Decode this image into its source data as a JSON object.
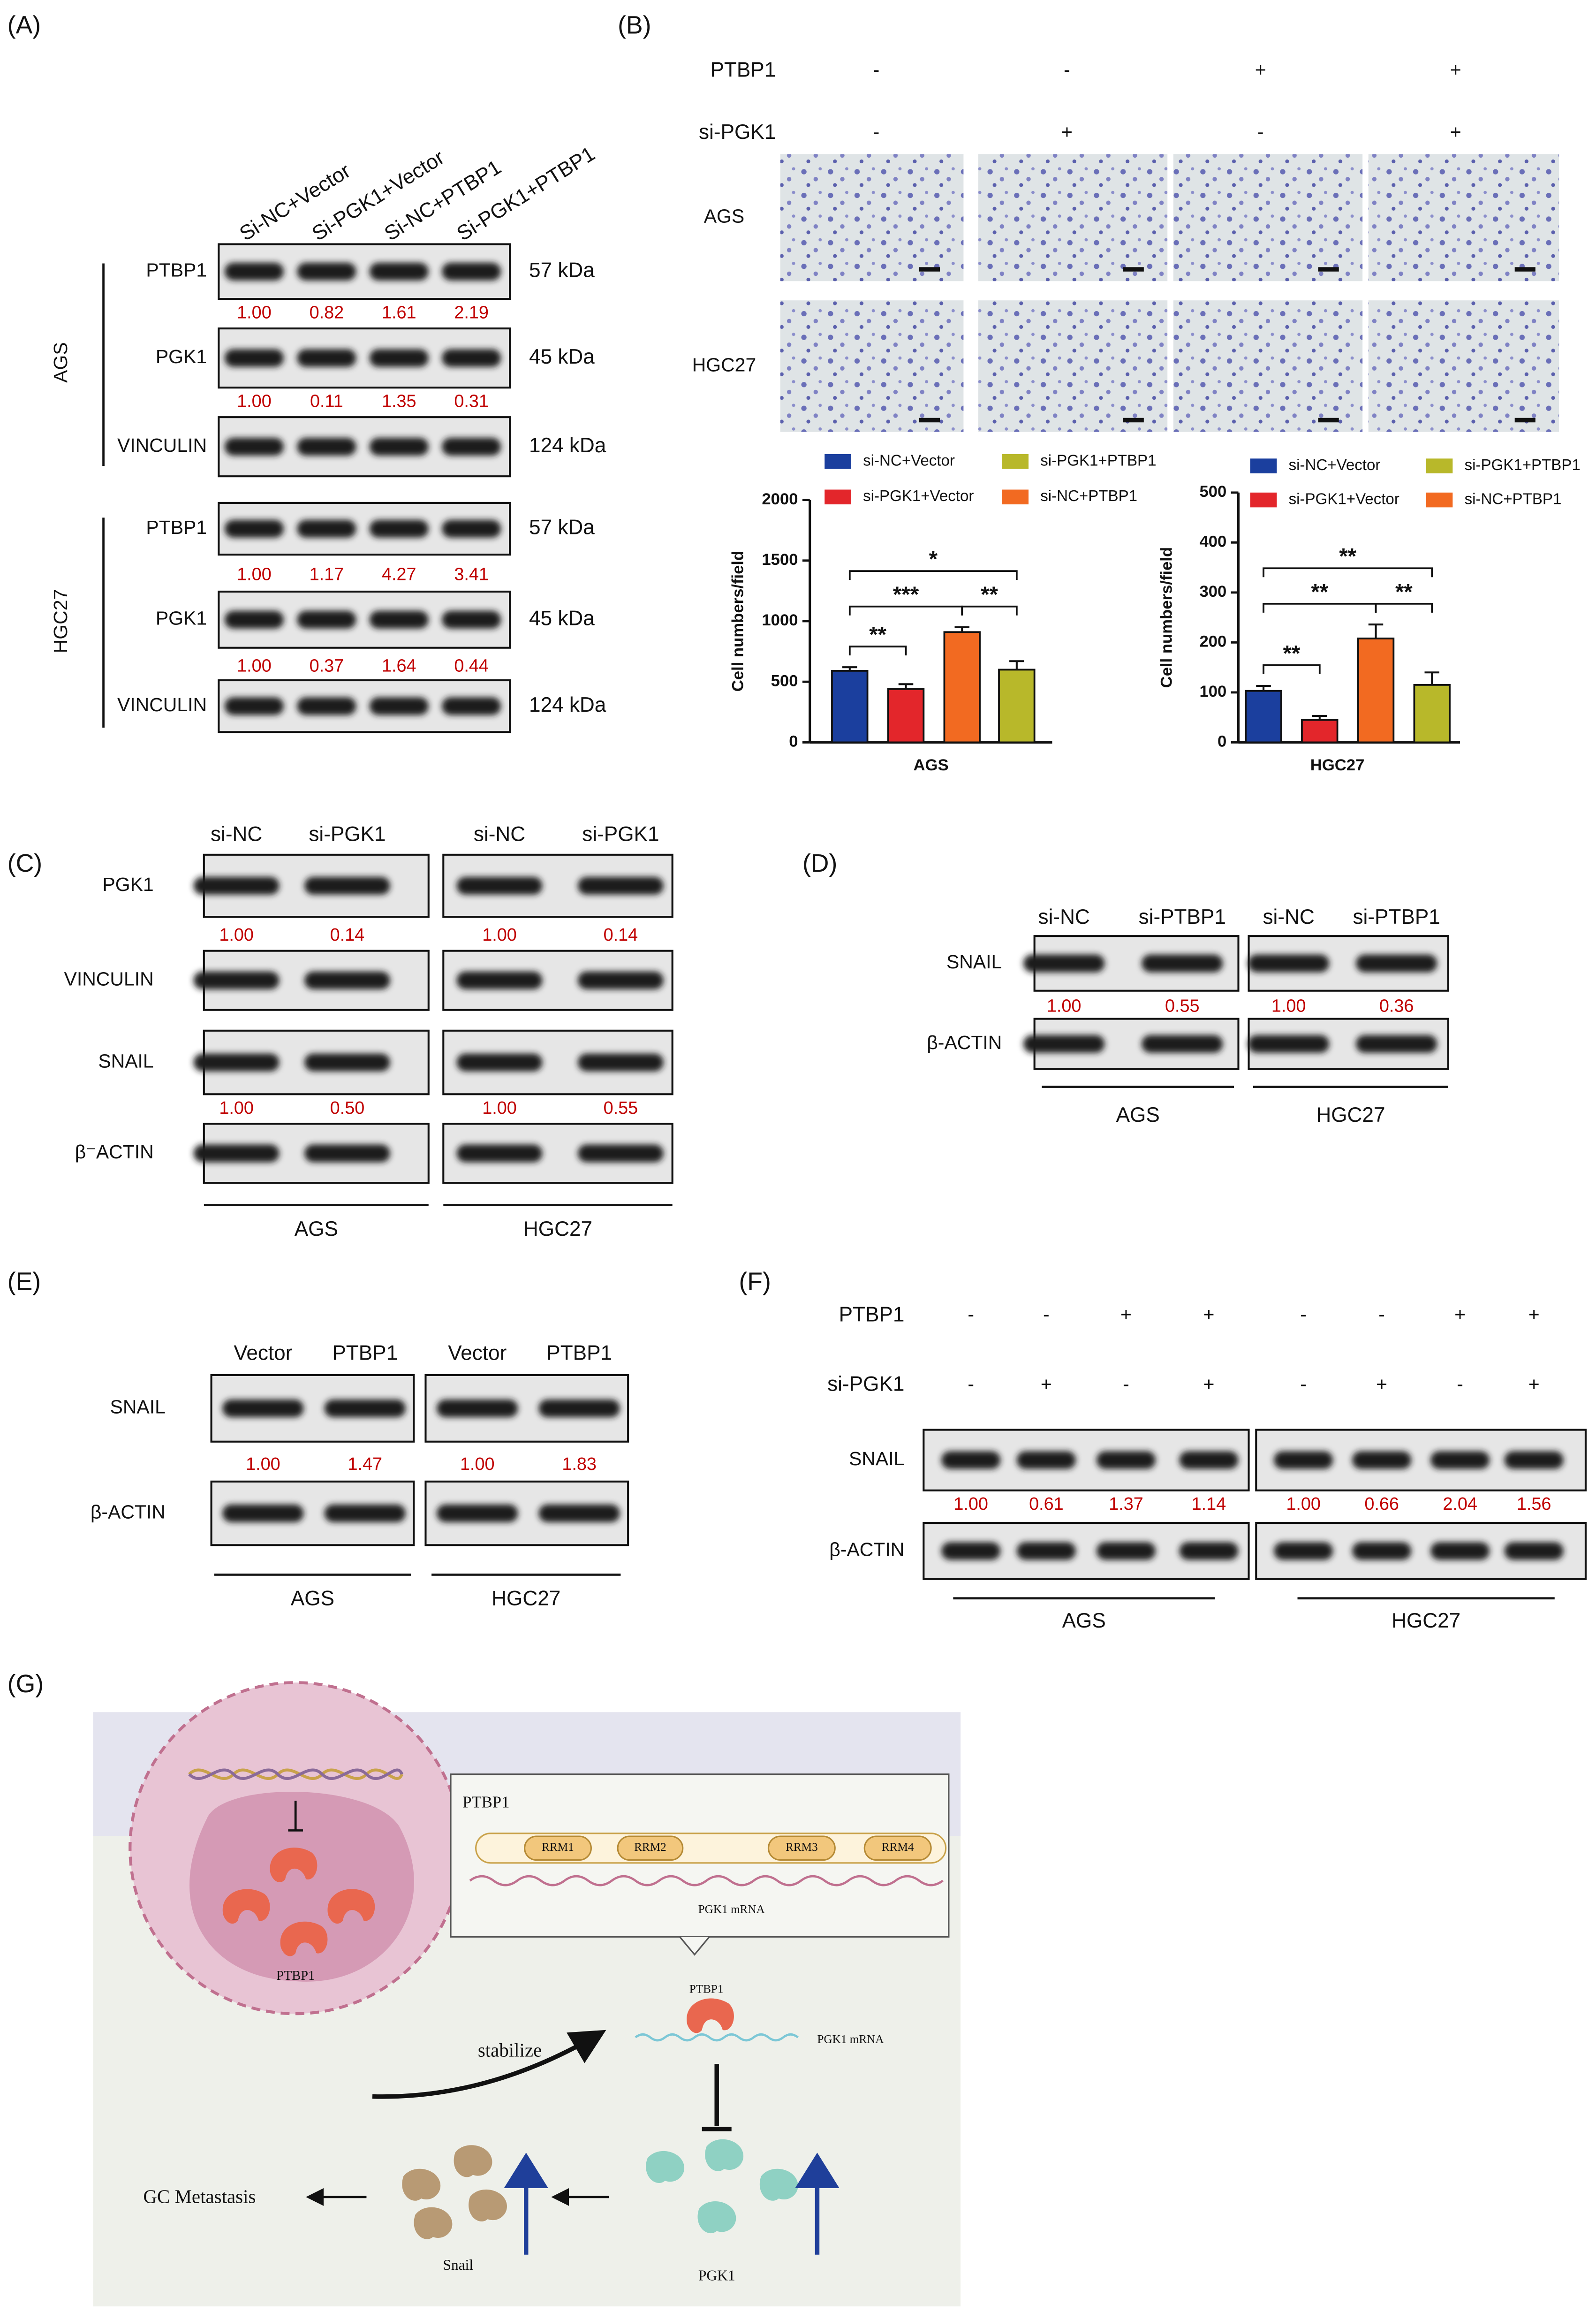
{
  "panel_labels": [
    "(A)",
    "(B)",
    "(C)",
    "(D)",
    "(E)",
    "(F)",
    "(G)"
  ],
  "panel_a": {
    "columns": [
      "Si-NC+Vector",
      "Si-PGK1+Vector",
      "Si-NC+PTBP1",
      "Si-PGK1+PTBP1"
    ],
    "groups": [
      {
        "name": "AGS",
        "rows": [
          {
            "protein": "PTBP1",
            "size": "57 kDa",
            "quant": [
              "1.00",
              "0.82",
              "1.61",
              "2.19"
            ]
          },
          {
            "protein": "PGK1",
            "size": "45 kDa",
            "quant": [
              "1.00",
              "0.11",
              "1.35",
              "0.31"
            ]
          },
          {
            "protein": "VINCULIN",
            "size": "124 kDa"
          }
        ]
      },
      {
        "name": "HGC27",
        "rows": [
          {
            "protein": "PTBP1",
            "size": "57 kDa",
            "quant": [
              "1.00",
              "1.17",
              "4.27",
              "3.41"
            ]
          },
          {
            "protein": "PGK1",
            "size": "45 kDa",
            "quant": [
              "1.00",
              "0.37",
              "1.64",
              "0.44"
            ]
          },
          {
            "protein": "VINCULIN",
            "size": "124 kDa"
          }
        ]
      }
    ]
  },
  "panel_b": {
    "conditions": [
      {
        "name": "PTBP1",
        "signs": [
          "-",
          "-",
          "+",
          "+"
        ]
      },
      {
        "name": "si-PGK1",
        "signs": [
          "-",
          "+",
          "-",
          "+"
        ]
      }
    ],
    "rows": [
      "AGS",
      "HGC27"
    ]
  },
  "chart_data": [
    {
      "type": "bar",
      "categories": [
        "AGS"
      ],
      "ylabel": "Cell numbers/field",
      "ylim": [
        0,
        2000
      ],
      "yticks": [
        0,
        500,
        1000,
        1500,
        2000
      ],
      "series": [
        {
          "name": "si-NC+Vector",
          "color": "#1b3f9e",
          "values": [
            590
          ],
          "errors": [
            30
          ]
        },
        {
          "name": "si-PGK1+Vector",
          "color": "#e3262b",
          "values": [
            440
          ],
          "errors": [
            40
          ]
        },
        {
          "name": "si-NC+PTBP1",
          "color": "#f26a21",
          "values": [
            910
          ],
          "errors": [
            40
          ]
        },
        {
          "name": "si-PGK1+PTBP1",
          "color": "#b8b82a",
          "values": [
            600
          ],
          "errors": [
            70
          ]
        }
      ],
      "annotations": [
        {
          "text": "**",
          "between": [
            "si-NC+Vector",
            "si-PGK1+Vector"
          ]
        },
        {
          "text": "***",
          "between": [
            "si-NC+Vector",
            "si-NC+PTBP1"
          ]
        },
        {
          "text": "**",
          "between": [
            "si-NC+PTBP1",
            "si-PGK1+PTBP1"
          ]
        },
        {
          "text": "*",
          "between": [
            "si-NC+Vector",
            "si-PGK1+PTBP1"
          ]
        }
      ]
    },
    {
      "type": "bar",
      "categories": [
        "HGC27"
      ],
      "ylabel": "Cell numbers/field",
      "ylim": [
        0,
        500
      ],
      "yticks": [
        0,
        100,
        200,
        300,
        400,
        500
      ],
      "series": [
        {
          "name": "si-NC+Vector",
          "color": "#1b3f9e",
          "values": [
            103
          ],
          "errors": [
            10
          ]
        },
        {
          "name": "si-PGK1+Vector",
          "color": "#e3262b",
          "values": [
            45
          ],
          "errors": [
            8
          ]
        },
        {
          "name": "si-NC+PTBP1",
          "color": "#f26a21",
          "values": [
            208
          ],
          "errors": [
            28
          ]
        },
        {
          "name": "si-PGK1+PTBP1",
          "color": "#b8b82a",
          "values": [
            115
          ],
          "errors": [
            25
          ]
        }
      ],
      "annotations": [
        {
          "text": "**",
          "between": [
            "si-NC+Vector",
            "si-PGK1+Vector"
          ]
        },
        {
          "text": "**",
          "between": [
            "si-NC+Vector",
            "si-NC+PTBP1"
          ]
        },
        {
          "text": "**",
          "between": [
            "si-NC+PTBP1",
            "si-PGK1+PTBP1"
          ]
        },
        {
          "text": "**",
          "between": [
            "si-NC+Vector",
            "si-PGK1+PTBP1"
          ]
        }
      ]
    }
  ],
  "panel_c": {
    "columns": [
      "si-NC",
      "si-PGK1",
      "si-NC",
      "si-PGK1"
    ],
    "rows": [
      {
        "protein": "PGK1",
        "quant": [
          "1.00",
          "0.14",
          "1.00",
          "0.14"
        ]
      },
      {
        "protein": "VINCULIN"
      },
      {
        "protein": "SNAIL",
        "quant": [
          "1.00",
          "0.50",
          "1.00",
          "0.55"
        ]
      },
      {
        "protein": "β⁻ACTIN"
      }
    ],
    "groups": [
      "AGS",
      "HGC27"
    ]
  },
  "panel_d": {
    "columns": [
      "si-NC",
      "si-PTBP1",
      "si-NC",
      "si-PTBP1"
    ],
    "rows": [
      {
        "protein": "SNAIL",
        "quant": [
          "1.00",
          "0.55",
          "1.00",
          "0.36"
        ]
      },
      {
        "protein": "β-ACTIN"
      }
    ],
    "groups": [
      "AGS",
      "HGC27"
    ]
  },
  "panel_e": {
    "columns": [
      "Vector",
      "PTBP1",
      "Vector",
      "PTBP1"
    ],
    "rows": [
      {
        "protein": "SNAIL",
        "quant": [
          "1.00",
          "1.47",
          "1.00",
          "1.83"
        ]
      },
      {
        "protein": "β-ACTIN"
      }
    ],
    "groups": [
      "AGS",
      "HGC27"
    ]
  },
  "panel_f": {
    "conditions": [
      {
        "name": "PTBP1",
        "signs": [
          "-",
          "-",
          "+",
          "+",
          "-",
          "-",
          "+",
          "+"
        ]
      },
      {
        "name": "si-PGK1",
        "signs": [
          "-",
          "+",
          "-",
          "+",
          "-",
          "+",
          "-",
          "+"
        ]
      }
    ],
    "rows": [
      {
        "protein": "SNAIL",
        "quant": [
          "1.00",
          "0.61",
          "1.37",
          "1.14",
          "1.00",
          "0.66",
          "2.04",
          "1.56"
        ]
      },
      {
        "protein": "β-ACTIN"
      }
    ],
    "groups": [
      "AGS",
      "HGC27"
    ]
  },
  "panel_g": {
    "domain_title": "PTBP1",
    "domains": [
      "RRM1",
      "RRM2",
      "RRM3",
      "RRM4"
    ],
    "mrna_box": "PGK1 mRNA",
    "protein": "PTBP1",
    "mrna": "PGK1 mRNA",
    "stabilize": "stabilize",
    "nucleus_protein": "PTBP1",
    "metastasis": "GC Metastasis",
    "snail": "Snail",
    "pgk1": "PGK1"
  }
}
